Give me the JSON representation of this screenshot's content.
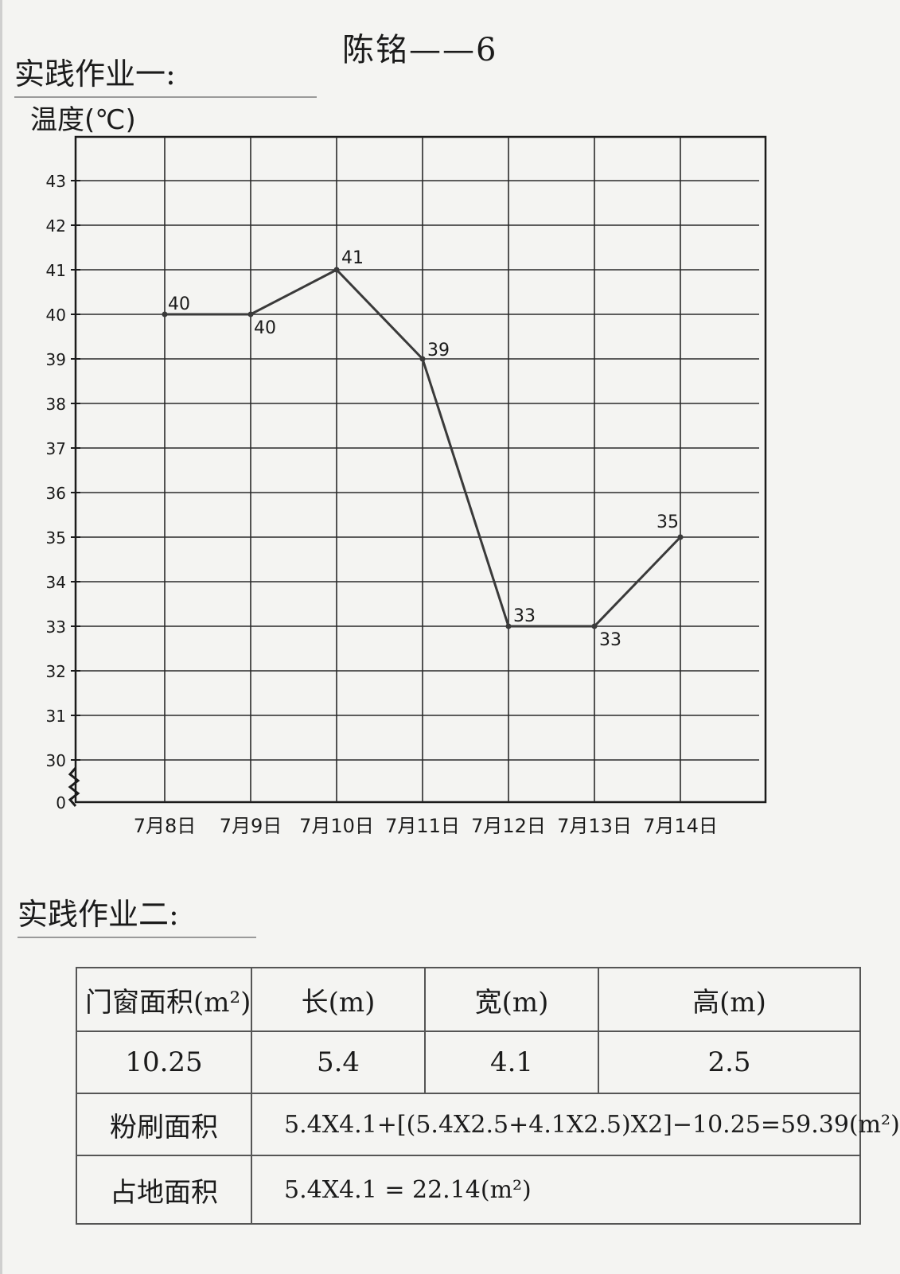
{
  "name_line": "陈铭——6",
  "heading_1": "实践作业一:",
  "heading_2": "实践作业二:",
  "chart_data": {
    "type": "line",
    "ylabel": "温度(℃)",
    "xlabel": "",
    "categories": [
      "7月8日",
      "7月9日",
      "7月10日",
      "7月11日",
      "7月12日",
      "7月13日",
      "7月14日"
    ],
    "series": [
      {
        "values": [
          40,
          40,
          41,
          39,
          33,
          33,
          35
        ]
      }
    ],
    "data_labels": [
      "40",
      "40",
      "41",
      "39",
      "33",
      "33",
      "35"
    ],
    "yticks": [
      30,
      31,
      32,
      33,
      34,
      35,
      36,
      37,
      38,
      39,
      40,
      41,
      42,
      43
    ],
    "y_origin_label": "0",
    "ylim": [
      30,
      44
    ],
    "axis_break": true,
    "grid": true,
    "line_color": "#3a3a3a"
  },
  "table": {
    "headers": [
      "门窗面积(m²)",
      "长(m)",
      "宽(m)",
      "高(m)"
    ],
    "values": [
      "10.25",
      "5.4",
      "4.1",
      "2.5"
    ],
    "rows": [
      {
        "label": "粉刷面积",
        "expr": "5.4X4.1+[(5.4X2.5+4.1X2.5)X2]−10.25=59.39(m²)"
      },
      {
        "label": "占地面积",
        "expr": "5.4X4.1 = 22.14(m²)"
      }
    ]
  }
}
